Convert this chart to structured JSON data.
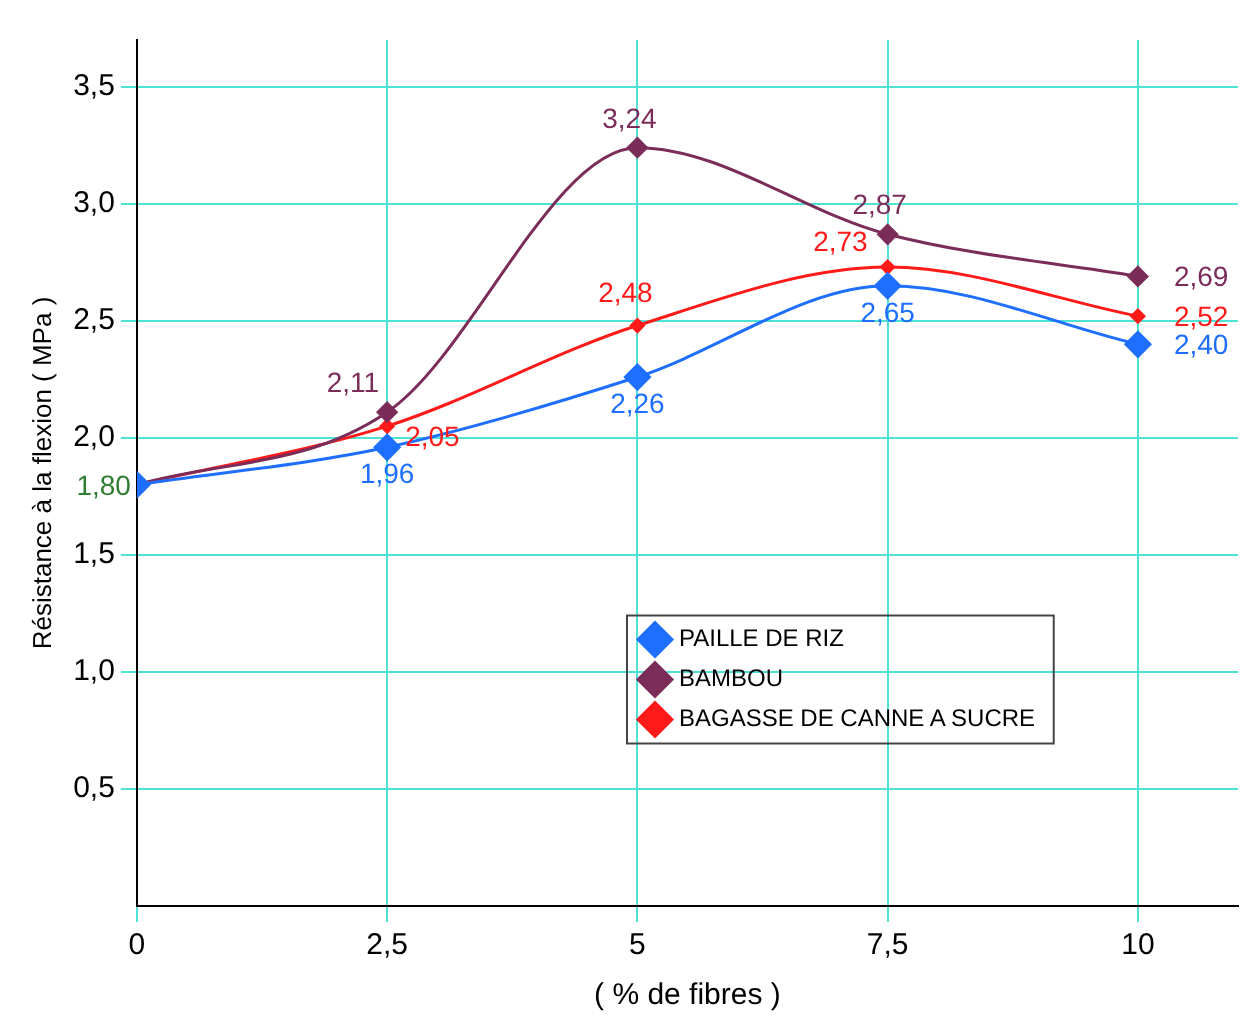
{
  "chart_data": {
    "type": "line",
    "xlabel": "( % de fibres )",
    "ylabel": "Résistance à la flexion ( MPa )",
    "x": [
      0,
      2.5,
      5,
      7.5,
      10
    ],
    "xlim": [
      0,
      11
    ],
    "xticks": [
      0,
      {
        "value": 2.5,
        "label": "2,5"
      },
      5,
      {
        "value": 7.5,
        "label": "7,5"
      },
      10
    ],
    "ylim": [
      0,
      3.7
    ],
    "yticks": [
      {
        "value": 0.5,
        "label": "0,5"
      },
      {
        "value": 1,
        "label": "1,0"
      },
      {
        "value": 1.5,
        "label": "1,5"
      },
      {
        "value": 2,
        "label": "2,0"
      },
      {
        "value": 2.5,
        "label": "2,5"
      },
      {
        "value": 3,
        "label": "3,0"
      },
      {
        "value": 3.5,
        "label": "3,5"
      }
    ],
    "grid": true,
    "marker": "diamond",
    "legend": "center",
    "series": [
      {
        "name": "PAILLE DE RIZ",
        "color": "#1e6fff",
        "values": [
          1.8,
          1.96,
          2.26,
          2.65,
          2.4
        ],
        "value_labels": [
          null,
          "1,96",
          "2,26",
          "2,65",
          "2,40"
        ]
      },
      {
        "name": "BAMBOU",
        "color": "#7b2d5a",
        "values": [
          1.8,
          2.11,
          3.24,
          2.87,
          2.69
        ],
        "value_labels": [
          null,
          "2,11",
          "3,24",
          "2,87",
          "2,69"
        ]
      },
      {
        "name": "BAGASSE DE CANNE A SUCRE",
        "color": "#ff1a1a",
        "values": [
          1.8,
          2.05,
          2.48,
          2.73,
          2.52
        ],
        "value_labels": [
          null,
          "2,05",
          "2,48",
          "2,73",
          "2,52"
        ]
      }
    ],
    "annotations": [
      {
        "text": "1,80",
        "x": 0,
        "y": 1.8
      }
    ]
  }
}
